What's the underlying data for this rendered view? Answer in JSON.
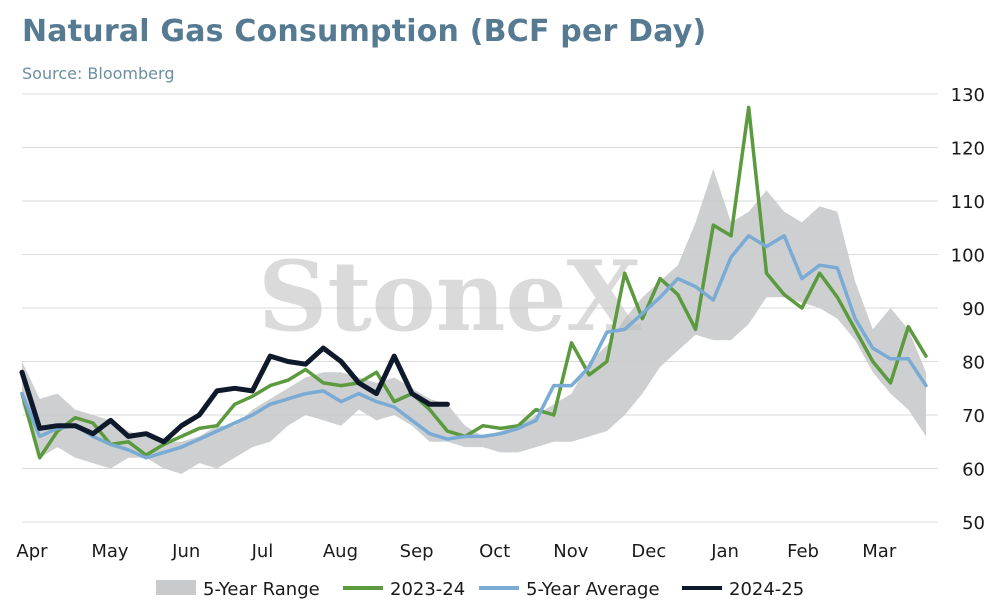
{
  "header": {
    "title": "Natural Gas Consumption (BCF per Day)",
    "subtitle": "Source: Bloomberg"
  },
  "watermark": "StoneX",
  "colors": {
    "range": "#c9cacb",
    "y2023": "#5b9a3e",
    "avg": "#7aabd4",
    "y2024": "#0e1a2b",
    "grid": "#d9d9d9"
  },
  "chart_data": {
    "type": "line",
    "title": "Natural Gas Consumption (BCF per Day)",
    "xlabel": "",
    "ylabel": "",
    "ylim": [
      50,
      130
    ],
    "y_ticks": [
      50,
      60,
      70,
      80,
      90,
      100,
      110,
      120,
      130
    ],
    "y_axis_side": "right",
    "grid": "horizontal",
    "legend_placement": "bottom",
    "x_tick_labels": [
      "Apr",
      "May",
      "Jun",
      "Jul",
      "Aug",
      "Sep",
      "Oct",
      "Nov",
      "Dec",
      "Jan",
      "Feb",
      "Mar"
    ],
    "x_tick_weeks": [
      0,
      4.4,
      8.7,
      13.0,
      17.4,
      21.7,
      26.1,
      30.4,
      34.8,
      39.1,
      43.5,
      47.8
    ],
    "series": [
      {
        "name": "5-Year Range",
        "kind": "band",
        "x": [
          0,
          1,
          2,
          3,
          4,
          5,
          6,
          7,
          8,
          9,
          10,
          11,
          12,
          13,
          14,
          15,
          16,
          17,
          18,
          19,
          20,
          21,
          22,
          23,
          24,
          25,
          26,
          27,
          28,
          29,
          30,
          31,
          32,
          33,
          34,
          35,
          36,
          37,
          38,
          39,
          40,
          41,
          42,
          43,
          44,
          45,
          46,
          47,
          48,
          49,
          50,
          51
        ],
        "low": [
          72,
          62,
          64,
          62,
          61,
          60,
          62,
          62,
          60,
          59,
          61,
          60,
          62,
          64,
          65,
          68,
          70,
          69,
          68,
          71,
          69,
          70,
          68,
          65,
          65,
          64,
          64,
          63,
          63,
          64,
          65,
          65,
          66,
          67,
          70,
          74,
          79,
          82,
          85,
          84,
          84,
          87,
          92,
          92,
          91,
          90,
          88,
          84,
          78,
          74,
          71,
          66
        ],
        "high": [
          80,
          73,
          74,
          71,
          70,
          69,
          67,
          66,
          65,
          65,
          66,
          68,
          68,
          71,
          73,
          75,
          77,
          78,
          78,
          77,
          76,
          77,
          75,
          73,
          72,
          68,
          66,
          67,
          68,
          70,
          72,
          74,
          80,
          83,
          88,
          92,
          95,
          98,
          106,
          116,
          106,
          108,
          112,
          108,
          106,
          109,
          108,
          95,
          86,
          90,
          86,
          78
        ]
      },
      {
        "name": "2023-24",
        "kind": "line",
        "x": [
          0,
          1,
          2,
          3,
          4,
          5,
          6,
          7,
          8,
          9,
          10,
          11,
          12,
          13,
          14,
          15,
          16,
          17,
          18,
          19,
          20,
          21,
          22,
          23,
          24,
          25,
          26,
          27,
          28,
          29,
          30,
          31,
          32,
          33,
          34,
          35,
          36,
          37,
          38,
          39,
          40,
          41,
          42,
          43,
          44,
          45,
          46,
          47,
          48,
          49,
          50,
          51
        ],
        "values": [
          74,
          62,
          67,
          69.5,
          68.5,
          64.5,
          65,
          62.5,
          64.5,
          66,
          67.5,
          68,
          72,
          73.5,
          75.5,
          76.5,
          78.5,
          76,
          75.5,
          76,
          78,
          72.5,
          74,
          71,
          67,
          66,
          68,
          67.5,
          68,
          71,
          70,
          83.5,
          77.5,
          80,
          96.5,
          88,
          95.5,
          92.5,
          86,
          105.5,
          103.5,
          127.5,
          96.5,
          92.5,
          90,
          96.5,
          92,
          86,
          80,
          76,
          86.5,
          81
        ]
      },
      {
        "name": "5-Year Average",
        "kind": "line",
        "x": [
          0,
          1,
          2,
          3,
          4,
          5,
          6,
          7,
          8,
          9,
          10,
          11,
          12,
          13,
          14,
          15,
          16,
          17,
          18,
          19,
          20,
          21,
          22,
          23,
          24,
          25,
          26,
          27,
          28,
          29,
          30,
          31,
          32,
          33,
          34,
          35,
          36,
          37,
          38,
          39,
          40,
          41,
          42,
          43,
          44,
          45,
          46,
          47,
          48,
          49,
          50,
          51
        ],
        "values": [
          74,
          66,
          67.5,
          68,
          66,
          64.5,
          63.5,
          62,
          63,
          64,
          65.5,
          67,
          68.5,
          70,
          72,
          73,
          74,
          74.5,
          72.5,
          74,
          72.5,
          71.5,
          69,
          66.5,
          65.5,
          66,
          66,
          66.5,
          67.5,
          69,
          75.5,
          75.5,
          79,
          85.5,
          86,
          89,
          92,
          95.5,
          94,
          91.5,
          99.5,
          103.5,
          101.5,
          103.5,
          95.5,
          98,
          97.5,
          88,
          82.5,
          80.5,
          80.5,
          75.5
        ]
      },
      {
        "name": "2024-25",
        "kind": "line",
        "x": [
          0,
          1,
          2,
          3,
          4,
          5,
          6,
          7,
          8,
          9,
          10,
          11,
          12,
          13,
          14,
          15,
          16,
          17,
          18,
          19,
          20,
          21,
          22,
          23,
          24
        ],
        "values": [
          78,
          67.5,
          68,
          68,
          66.5,
          69,
          66,
          66.5,
          65,
          68,
          70,
          74.5,
          75,
          74.5,
          81,
          80,
          79.5,
          82.5,
          80,
          76,
          74,
          81,
          74,
          72,
          72
        ]
      }
    ]
  },
  "legend": {
    "items": [
      {
        "label": "5-Year Range",
        "swatch": "box"
      },
      {
        "label": "2023-24",
        "swatch": "line"
      },
      {
        "label": "5-Year Average",
        "swatch": "line"
      },
      {
        "label": "2024-25",
        "swatch": "line"
      }
    ]
  }
}
